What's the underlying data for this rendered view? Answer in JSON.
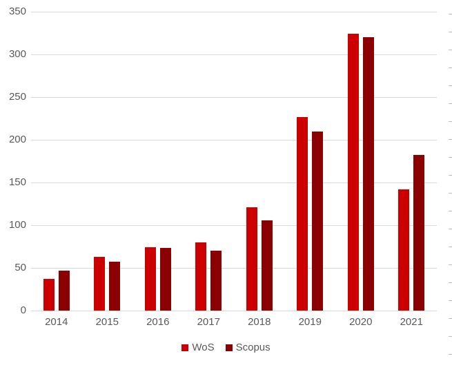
{
  "chart_data": {
    "type": "bar",
    "title": "",
    "xlabel": "",
    "ylabel": "",
    "categories": [
      "2014",
      "2015",
      "2016",
      "2017",
      "2018",
      "2019",
      "2020",
      "2021"
    ],
    "series": [
      {
        "name": "WoS",
        "color": "#CC0000",
        "values": [
          37,
          63,
          74,
          80,
          121,
          227,
          324,
          142
        ]
      },
      {
        "name": "Scopus",
        "color": "#8B0000",
        "values": [
          47,
          57,
          73,
          70,
          106,
          210,
          320,
          182
        ]
      }
    ],
    "ylim": [
      0,
      350
    ],
    "ytick_step": 50,
    "ytick_labels": [
      "0",
      "50",
      "100",
      "150",
      "200",
      "250",
      "300",
      "350"
    ],
    "grid": true,
    "legend_position": "bottom"
  },
  "colors": {
    "background": "#FFFFFF",
    "grid": "#D9D9D9",
    "axis_text": "#595959",
    "right_ticks": "#BFBFBF"
  }
}
